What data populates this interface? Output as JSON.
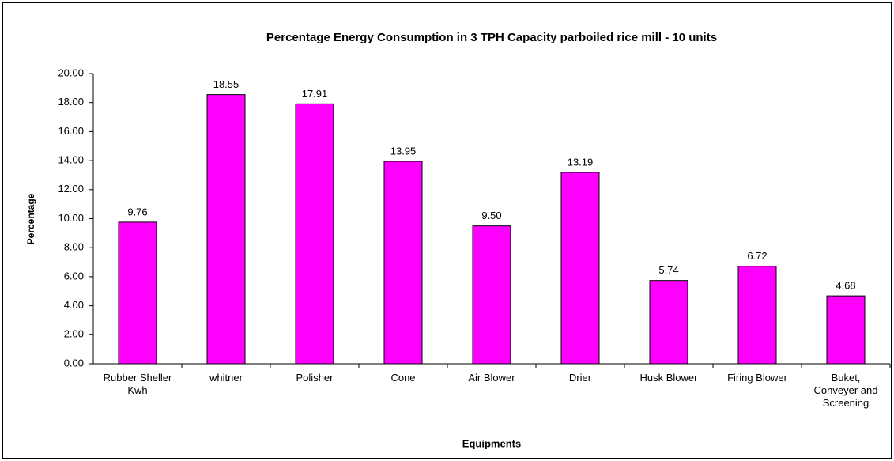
{
  "chart_data": {
    "type": "bar",
    "title": "Percentage Energy Consumption in 3 TPH Capacity parboiled rice mill - 10 units",
    "x_label": "Equipments",
    "y_label": "Percentage",
    "categories": [
      "Rubber Sheller Kwh",
      "whitner",
      "Polisher",
      "Cone",
      "Air Blower",
      "Drier",
      "Husk Blower",
      "Firing Blower",
      "Buket, Conveyer and Screening"
    ],
    "values": [
      9.76,
      18.55,
      17.91,
      13.95,
      9.5,
      13.19,
      5.74,
      6.72,
      4.68
    ],
    "value_labels": [
      "9.76",
      "18.55",
      "17.91",
      "13.95",
      "9.50",
      "13.19",
      "5.74",
      "6.72",
      "4.68"
    ],
    "color": "#ff00ff",
    "ylim": [
      0,
      20
    ],
    "yticks": [
      {
        "value": 0,
        "label": "0.00"
      },
      {
        "value": 2,
        "label": "2.00"
      },
      {
        "value": 4,
        "label": "4.00"
      },
      {
        "value": 6,
        "label": "6.00"
      },
      {
        "value": 8,
        "label": "8.00"
      },
      {
        "value": 10,
        "label": "10.00"
      },
      {
        "value": 12,
        "label": "12.00"
      },
      {
        "value": 14,
        "label": "14.00"
      },
      {
        "value": 16,
        "label": "16.00"
      },
      {
        "value": 18,
        "label": "18.00"
      },
      {
        "value": 20,
        "label": "20.00"
      }
    ],
    "grid": false
  }
}
